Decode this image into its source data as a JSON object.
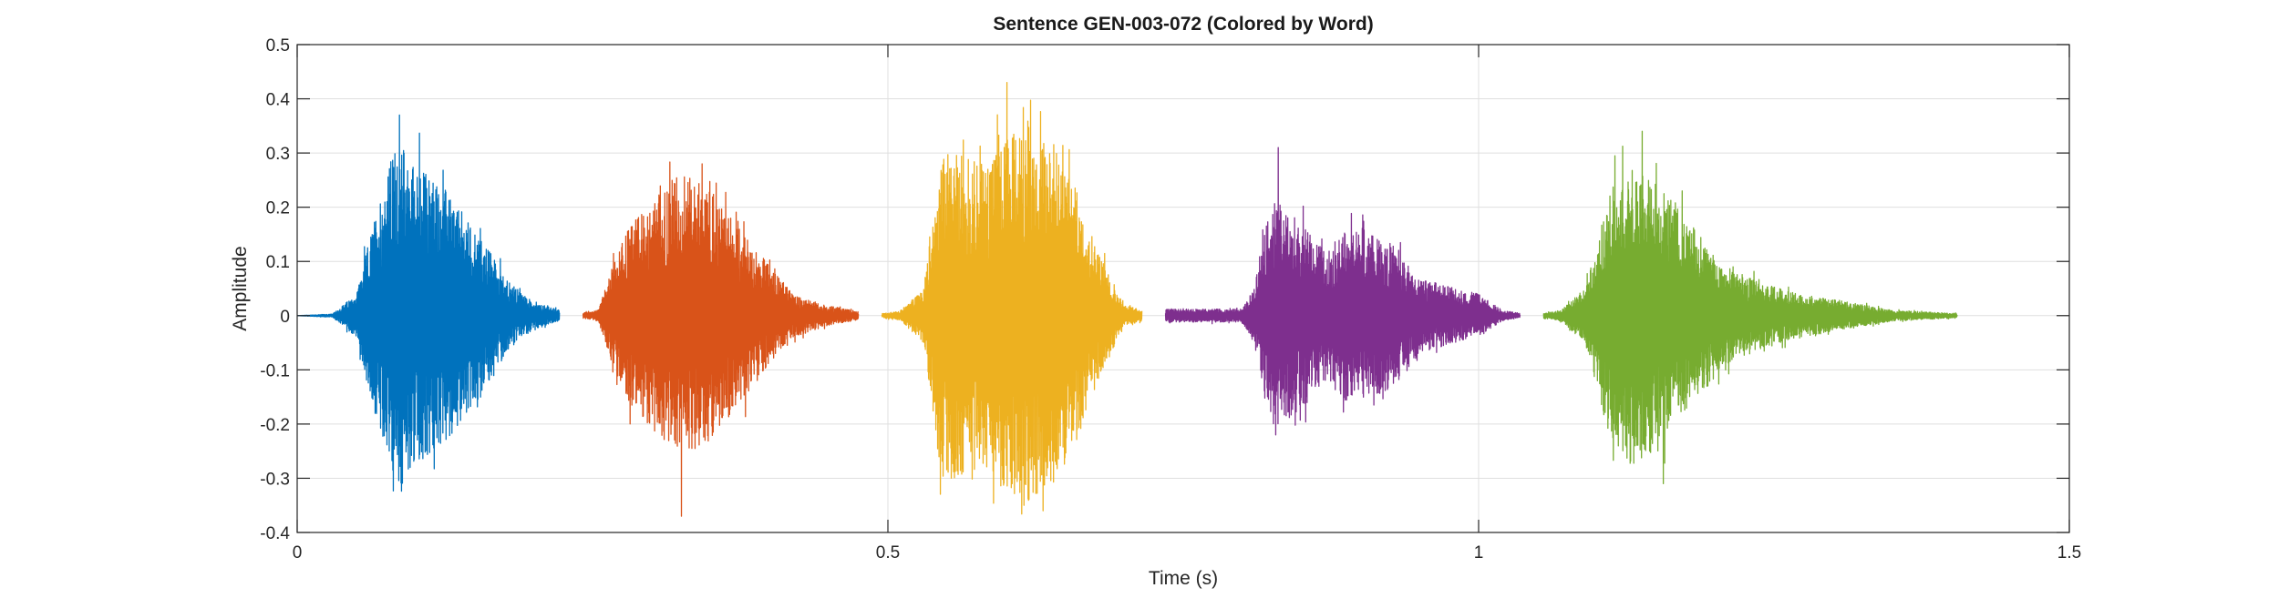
{
  "chart_data": {
    "type": "line",
    "title": "Sentence GEN-003-072 (Colored by Word)",
    "xlabel": "Time (s)",
    "ylabel": "Amplitude",
    "xlim": [
      0,
      1.5
    ],
    "ylim": [
      -0.4,
      0.5
    ],
    "xticks": [
      0,
      0.5,
      1,
      1.5
    ],
    "xtick_labels": [
      "0",
      "0.5",
      "1",
      "1.5"
    ],
    "yticks": [
      -0.4,
      -0.3,
      -0.2,
      -0.1,
      0,
      0.1,
      0.2,
      0.3,
      0.4,
      0.5
    ],
    "ytick_labels": [
      "-0.4",
      "-0.3",
      "-0.2",
      "-0.1",
      "0",
      "0.1",
      "0.2",
      "0.3",
      "0.4",
      "0.5"
    ],
    "grid": true,
    "series": [
      {
        "color": "#0072BD",
        "t_start": 0.0,
        "t_end": 0.222,
        "envelope": [
          [
            0.0,
            0.0
          ],
          [
            0.03,
            0.003
          ],
          [
            0.05,
            0.04
          ],
          [
            0.07,
            0.22
          ],
          [
            0.085,
            0.33
          ],
          [
            0.1,
            0.28
          ],
          [
            0.12,
            0.25
          ],
          [
            0.14,
            0.19
          ],
          [
            0.16,
            0.13
          ],
          [
            0.18,
            0.06
          ],
          [
            0.2,
            0.025
          ],
          [
            0.222,
            0.01
          ]
        ],
        "peak_max": 0.37,
        "peak_min": -0.24
      },
      {
        "color": "#D95319",
        "t_start": 0.242,
        "t_end": 0.475,
        "envelope": [
          [
            0.242,
            0.005
          ],
          [
            0.255,
            0.01
          ],
          [
            0.265,
            0.08
          ],
          [
            0.28,
            0.16
          ],
          [
            0.3,
            0.21
          ],
          [
            0.32,
            0.26
          ],
          [
            0.34,
            0.25
          ],
          [
            0.36,
            0.2
          ],
          [
            0.38,
            0.15
          ],
          [
            0.4,
            0.09
          ],
          [
            0.42,
            0.04
          ],
          [
            0.45,
            0.018
          ],
          [
            0.475,
            0.008
          ]
        ],
        "peak_max": 0.28,
        "peak_min": -0.37
      },
      {
        "color": "#EDB120",
        "t_start": 0.495,
        "t_end": 0.715,
        "envelope": [
          [
            0.495,
            0.004
          ],
          [
            0.51,
            0.008
          ],
          [
            0.53,
            0.05
          ],
          [
            0.545,
            0.3
          ],
          [
            0.56,
            0.3
          ],
          [
            0.58,
            0.28
          ],
          [
            0.6,
            0.33
          ],
          [
            0.62,
            0.35
          ],
          [
            0.64,
            0.32
          ],
          [
            0.66,
            0.23
          ],
          [
            0.68,
            0.11
          ],
          [
            0.7,
            0.02
          ],
          [
            0.715,
            0.01
          ]
        ],
        "peak_max": 0.43,
        "peak_min": -0.36
      },
      {
        "color": "#7E2F8E",
        "t_start": 0.735,
        "t_end": 1.035,
        "envelope": [
          [
            0.735,
            0.012
          ],
          [
            0.8,
            0.012
          ],
          [
            0.81,
            0.05
          ],
          [
            0.825,
            0.22
          ],
          [
            0.845,
            0.18
          ],
          [
            0.87,
            0.12
          ],
          [
            0.89,
            0.16
          ],
          [
            0.91,
            0.15
          ],
          [
            0.93,
            0.13
          ],
          [
            0.95,
            0.07
          ],
          [
            0.98,
            0.05
          ],
          [
            1.0,
            0.04
          ],
          [
            1.02,
            0.01
          ],
          [
            1.035,
            0.004
          ]
        ],
        "peak_max": 0.31,
        "peak_min": -0.22
      },
      {
        "color": "#77AC30",
        "t_start": 1.055,
        "t_end": 1.405,
        "envelope": [
          [
            1.055,
            0.005
          ],
          [
            1.07,
            0.01
          ],
          [
            1.09,
            0.05
          ],
          [
            1.11,
            0.22
          ],
          [
            1.13,
            0.28
          ],
          [
            1.15,
            0.25
          ],
          [
            1.17,
            0.2
          ],
          [
            1.19,
            0.14
          ],
          [
            1.21,
            0.09
          ],
          [
            1.24,
            0.06
          ],
          [
            1.27,
            0.04
          ],
          [
            1.3,
            0.03
          ],
          [
            1.35,
            0.01
          ],
          [
            1.405,
            0.004
          ]
        ],
        "peak_max": 0.34,
        "peak_min": -0.31
      }
    ]
  }
}
